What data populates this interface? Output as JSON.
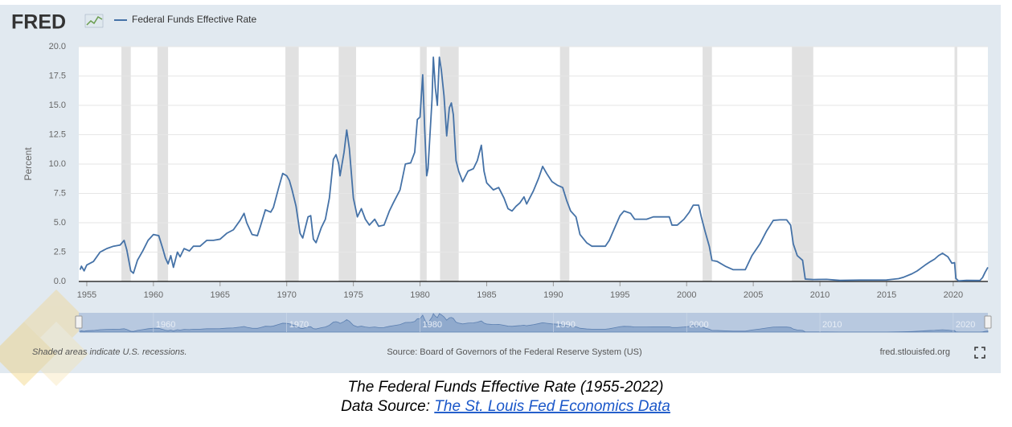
{
  "chart_data": {
    "type": "line",
    "logo": "FRED",
    "ylabel": "Percent",
    "note": "Shaded areas indicate U.S. recessions.",
    "source": "Source: Board of Governors of the Federal Reserve System (US)",
    "site": "fred.stlouisfed.org",
    "xlim": [
      1954.4,
      2022.6
    ],
    "ylim": [
      0,
      20
    ],
    "xticks": [
      1955,
      1960,
      1965,
      1970,
      1975,
      1980,
      1985,
      1990,
      1995,
      2000,
      2005,
      2010,
      2015,
      2020
    ],
    "yticks": [
      {
        "value": 0,
        "label": "0.0"
      },
      {
        "value": 2.5,
        "label": "2.5"
      },
      {
        "value": 5,
        "label": "5.0"
      },
      {
        "value": 7.5,
        "label": "7.5"
      },
      {
        "value": 10,
        "label": "10.0"
      },
      {
        "value": 12.5,
        "label": "12.5"
      },
      {
        "value": 15,
        "label": "15.0"
      },
      {
        "value": 17.5,
        "label": "17.5"
      },
      {
        "value": 20,
        "label": "20.0"
      }
    ],
    "grid": true,
    "navigator_xticks": [
      1960,
      1970,
      1980,
      1990,
      2000,
      2010,
      2020
    ],
    "recessions": [
      [
        1957.6,
        1958.3
      ],
      [
        1960.3,
        1961.1
      ],
      [
        1969.9,
        1970.9
      ],
      [
        1973.9,
        1975.2
      ],
      [
        1980.0,
        1980.5
      ],
      [
        1981.5,
        1982.9
      ],
      [
        1990.5,
        1991.2
      ],
      [
        2001.2,
        2001.9
      ],
      [
        2007.9,
        2009.5
      ],
      [
        2020.1,
        2020.3
      ]
    ],
    "x": [
      1954.5,
      1954.6,
      1954.8,
      1955.0,
      1955.5,
      1956.0,
      1956.5,
      1957.0,
      1957.5,
      1957.8,
      1958.0,
      1958.3,
      1958.5,
      1958.8,
      1959.2,
      1959.6,
      1960.0,
      1960.4,
      1960.7,
      1960.9,
      1961.1,
      1961.3,
      1961.5,
      1961.8,
      1962.0,
      1962.3,
      1962.7,
      1963.0,
      1963.5,
      1964.0,
      1964.5,
      1965.0,
      1965.5,
      1966.0,
      1966.5,
      1966.8,
      1967.0,
      1967.4,
      1967.8,
      1968.0,
      1968.4,
      1968.8,
      1969.0,
      1969.4,
      1969.7,
      1970.0,
      1970.2,
      1970.4,
      1970.7,
      1971.0,
      1971.2,
      1971.6,
      1971.8,
      1972.0,
      1972.2,
      1972.6,
      1972.9,
      1973.2,
      1973.5,
      1973.7,
      1973.9,
      1974.0,
      1974.3,
      1974.5,
      1974.7,
      1975.0,
      1975.3,
      1975.6,
      1975.9,
      1976.2,
      1976.6,
      1976.9,
      1977.3,
      1977.7,
      1978.0,
      1978.5,
      1978.9,
      1979.3,
      1979.6,
      1979.8,
      1980.0,
      1980.2,
      1980.35,
      1980.5,
      1980.6,
      1980.9,
      1981.0,
      1981.15,
      1981.3,
      1981.45,
      1981.6,
      1981.8,
      1982.0,
      1982.2,
      1982.35,
      1982.5,
      1982.7,
      1982.9,
      1983.2,
      1983.6,
      1984.0,
      1984.3,
      1984.6,
      1984.8,
      1985.0,
      1985.5,
      1985.9,
      1986.3,
      1986.6,
      1986.9,
      1987.2,
      1987.5,
      1987.8,
      1988.0,
      1988.5,
      1988.9,
      1989.2,
      1989.5,
      1989.9,
      1990.3,
      1990.7,
      1991.0,
      1991.3,
      1991.7,
      1992.0,
      1992.5,
      1992.9,
      1993.5,
      1993.9,
      1994.2,
      1994.5,
      1995.0,
      1995.3,
      1995.8,
      1996.1,
      1996.6,
      1997.0,
      1997.5,
      1998.0,
      1998.7,
      1998.9,
      1999.3,
      1999.8,
      2000.2,
      2000.5,
      2000.9,
      2001.1,
      2001.4,
      2001.7,
      2001.9,
      2002.3,
      2002.9,
      2003.5,
      2004.4,
      2004.9,
      2005.5,
      2006.0,
      2006.5,
      2007.0,
      2007.5,
      2007.8,
      2008.0,
      2008.3,
      2008.7,
      2008.9,
      2009.5,
      2010.5,
      2011.5,
      2013.0,
      2015.0,
      2015.9,
      2016.3,
      2016.9,
      2017.3,
      2017.6,
      2017.9,
      2018.3,
      2018.6,
      2018.9,
      2019.2,
      2019.6,
      2019.9,
      2020.1,
      2020.2,
      2020.4,
      2021.0,
      2022.0,
      2022.2,
      2022.4,
      2022.6
    ],
    "series": [
      {
        "name": "Federal Funds Effective Rate",
        "color": "#4572a7",
        "values": [
          1.0,
          1.3,
          0.9,
          1.4,
          1.7,
          2.5,
          2.8,
          3.0,
          3.1,
          3.5,
          2.7,
          0.9,
          0.7,
          1.8,
          2.6,
          3.5,
          4.0,
          3.9,
          2.8,
          2.0,
          1.5,
          2.2,
          1.2,
          2.5,
          2.1,
          2.8,
          2.6,
          3.0,
          3.0,
          3.5,
          3.5,
          3.6,
          4.1,
          4.4,
          5.2,
          5.8,
          5.0,
          4.0,
          3.9,
          4.6,
          6.1,
          5.9,
          6.3,
          8.0,
          9.2,
          9.0,
          8.6,
          7.8,
          6.4,
          4.1,
          3.7,
          5.5,
          5.6,
          3.6,
          3.3,
          4.6,
          5.3,
          7.1,
          10.4,
          10.8,
          10.0,
          9.0,
          11.0,
          12.9,
          11.3,
          7.1,
          5.5,
          6.2,
          5.3,
          4.8,
          5.3,
          4.7,
          4.8,
          6.0,
          6.7,
          7.8,
          10.0,
          10.1,
          11.0,
          13.8,
          14.0,
          17.6,
          13.0,
          9.0,
          9.6,
          15.5,
          19.1,
          16.5,
          15.0,
          19.1,
          18.0,
          15.8,
          12.4,
          14.8,
          15.2,
          14.2,
          10.3,
          9.4,
          8.5,
          9.4,
          9.6,
          10.3,
          11.6,
          9.4,
          8.4,
          7.8,
          8.0,
          7.1,
          6.2,
          6.0,
          6.4,
          6.7,
          7.2,
          6.6,
          7.7,
          8.8,
          9.8,
          9.2,
          8.5,
          8.2,
          8.0,
          6.9,
          6.0,
          5.5,
          4.0,
          3.3,
          3.0,
          3.0,
          3.0,
          3.5,
          4.3,
          5.6,
          6.0,
          5.8,
          5.3,
          5.3,
          5.3,
          5.5,
          5.5,
          5.5,
          4.8,
          4.8,
          5.3,
          5.9,
          6.5,
          6.5,
          5.5,
          4.2,
          3.0,
          1.8,
          1.7,
          1.3,
          1.0,
          1.0,
          2.2,
          3.2,
          4.3,
          5.2,
          5.25,
          5.25,
          4.8,
          3.2,
          2.2,
          1.8,
          0.2,
          0.16,
          0.18,
          0.09,
          0.12,
          0.13,
          0.24,
          0.37,
          0.65,
          0.9,
          1.15,
          1.4,
          1.7,
          1.9,
          2.2,
          2.4,
          2.1,
          1.55,
          1.6,
          0.25,
          0.05,
          0.09,
          0.08,
          0.33,
          0.8,
          1.2
        ]
      }
    ]
  },
  "caption": {
    "title": "The Federal Funds Effective Rate (1955-2022)",
    "source_label": "Data Source:",
    "source_link": "The St. Louis Fed Economics Data"
  }
}
